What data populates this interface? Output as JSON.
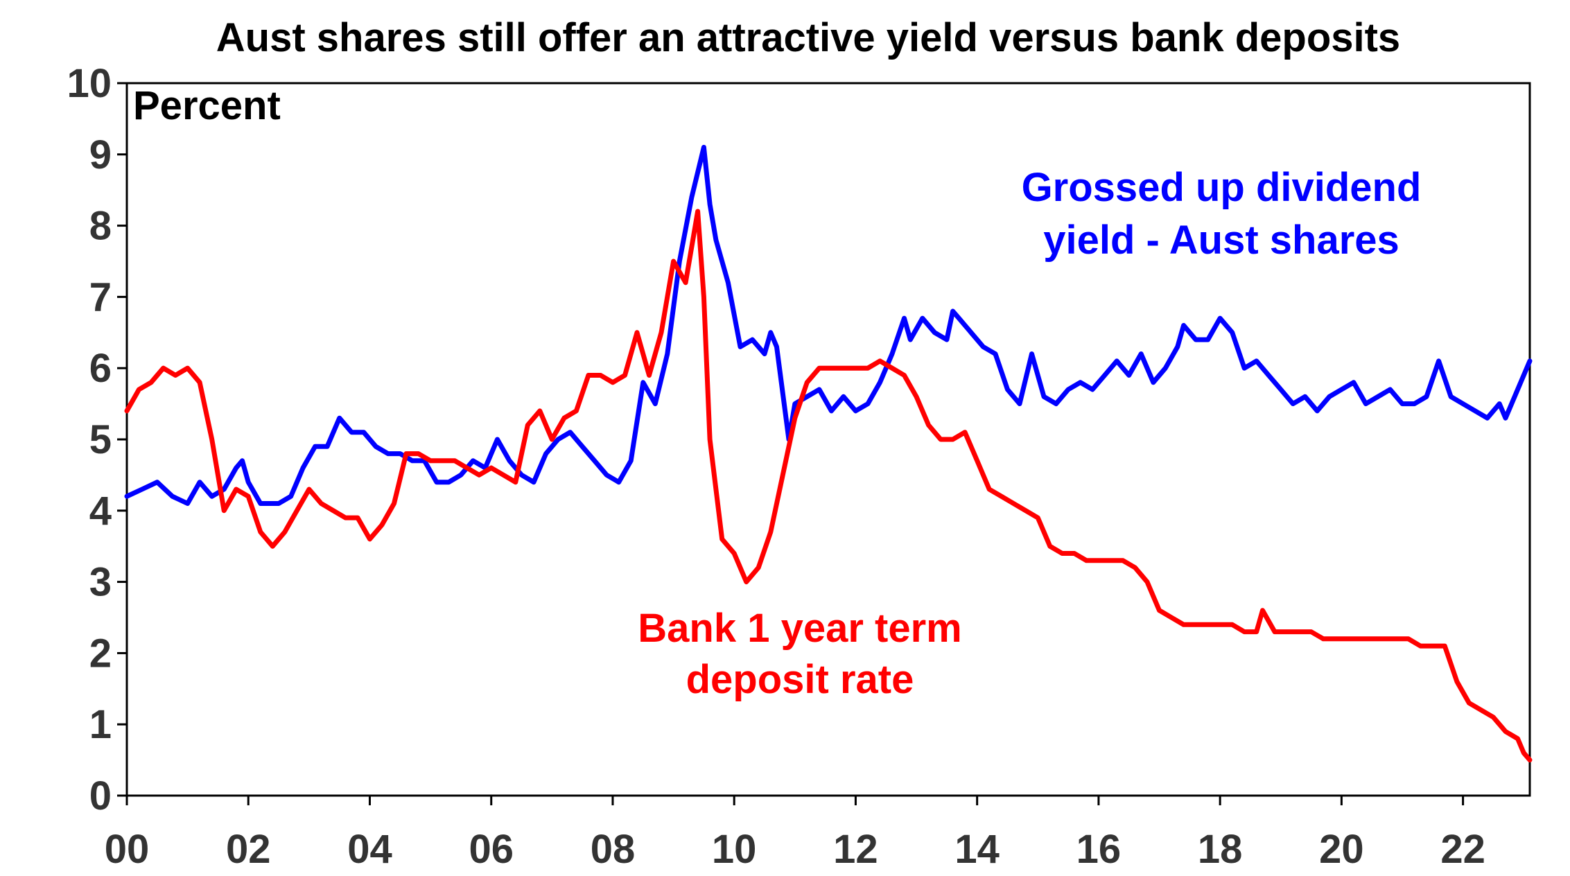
{
  "chart_data": {
    "type": "line",
    "title": "Aust shares still offer an attractive yield versus bank deposits",
    "ylabel": "Percent",
    "xlabel": "",
    "xlim": [
      2000,
      2023.1
    ],
    "ylim": [
      0,
      10
    ],
    "y_ticks": [
      "0",
      "1",
      "2",
      "3",
      "4",
      "5",
      "6",
      "7",
      "8",
      "9",
      "10"
    ],
    "x_ticks": [
      {
        "x": 2000,
        "label": "00"
      },
      {
        "x": 2002,
        "label": "02"
      },
      {
        "x": 2004,
        "label": "04"
      },
      {
        "x": 2006,
        "label": "06"
      },
      {
        "x": 2008,
        "label": "08"
      },
      {
        "x": 2010,
        "label": "10"
      },
      {
        "x": 2012,
        "label": "12"
      },
      {
        "x": 2014,
        "label": "14"
      },
      {
        "x": 2016,
        "label": "16"
      },
      {
        "x": 2018,
        "label": "18"
      },
      {
        "x": 2020,
        "label": "20"
      },
      {
        "x": 2022,
        "label": "22"
      }
    ],
    "grid": false,
    "series": [
      {
        "name": "Grossed up dividend yield - Aust shares",
        "label_lines": [
          "Grossed up dividend",
          "yield - Aust shares"
        ],
        "color": "#0000ff",
        "points": [
          [
            2000.0,
            4.2
          ],
          [
            2000.25,
            4.3
          ],
          [
            2000.5,
            4.4
          ],
          [
            2000.75,
            4.2
          ],
          [
            2001.0,
            4.1
          ],
          [
            2001.2,
            4.4
          ],
          [
            2001.4,
            4.2
          ],
          [
            2001.6,
            4.3
          ],
          [
            2001.8,
            4.6
          ],
          [
            2001.9,
            4.7
          ],
          [
            2002.0,
            4.4
          ],
          [
            2002.2,
            4.1
          ],
          [
            2002.5,
            4.1
          ],
          [
            2002.7,
            4.2
          ],
          [
            2002.9,
            4.6
          ],
          [
            2003.1,
            4.9
          ],
          [
            2003.3,
            4.9
          ],
          [
            2003.5,
            5.3
          ],
          [
            2003.7,
            5.1
          ],
          [
            2003.9,
            5.1
          ],
          [
            2004.1,
            4.9
          ],
          [
            2004.3,
            4.8
          ],
          [
            2004.5,
            4.8
          ],
          [
            2004.7,
            4.7
          ],
          [
            2004.9,
            4.7
          ],
          [
            2005.1,
            4.4
          ],
          [
            2005.3,
            4.4
          ],
          [
            2005.5,
            4.5
          ],
          [
            2005.7,
            4.7
          ],
          [
            2005.9,
            4.6
          ],
          [
            2006.1,
            5.0
          ],
          [
            2006.3,
            4.7
          ],
          [
            2006.5,
            4.5
          ],
          [
            2006.7,
            4.4
          ],
          [
            2006.9,
            4.8
          ],
          [
            2007.1,
            5.0
          ],
          [
            2007.3,
            5.1
          ],
          [
            2007.5,
            4.9
          ],
          [
            2007.7,
            4.7
          ],
          [
            2007.9,
            4.5
          ],
          [
            2008.1,
            4.4
          ],
          [
            2008.3,
            4.7
          ],
          [
            2008.5,
            5.8
          ],
          [
            2008.7,
            5.5
          ],
          [
            2008.9,
            6.2
          ],
          [
            2009.1,
            7.5
          ],
          [
            2009.3,
            8.4
          ],
          [
            2009.5,
            9.1
          ],
          [
            2009.6,
            8.3
          ],
          [
            2009.7,
            7.8
          ],
          [
            2009.9,
            7.2
          ],
          [
            2010.1,
            6.3
          ],
          [
            2010.3,
            6.4
          ],
          [
            2010.5,
            6.2
          ],
          [
            2010.6,
            6.5
          ],
          [
            2010.7,
            6.3
          ],
          [
            2010.9,
            5.0
          ],
          [
            2011.0,
            5.5
          ],
          [
            2011.2,
            5.6
          ],
          [
            2011.4,
            5.7
          ],
          [
            2011.6,
            5.4
          ],
          [
            2011.8,
            5.6
          ],
          [
            2012.0,
            5.4
          ],
          [
            2012.2,
            5.5
          ],
          [
            2012.4,
            5.8
          ],
          [
            2012.6,
            6.2
          ],
          [
            2012.8,
            6.7
          ],
          [
            2012.9,
            6.4
          ],
          [
            2013.1,
            6.7
          ],
          [
            2013.3,
            6.5
          ],
          [
            2013.5,
            6.4
          ],
          [
            2013.6,
            6.8
          ],
          [
            2013.7,
            6.7
          ],
          [
            2013.9,
            6.5
          ],
          [
            2014.1,
            6.3
          ],
          [
            2014.3,
            6.2
          ],
          [
            2014.5,
            5.7
          ],
          [
            2014.7,
            5.5
          ],
          [
            2014.9,
            6.2
          ],
          [
            2015.1,
            5.6
          ],
          [
            2015.3,
            5.5
          ],
          [
            2015.5,
            5.7
          ],
          [
            2015.7,
            5.8
          ],
          [
            2015.9,
            5.7
          ],
          [
            2016.1,
            5.9
          ],
          [
            2016.3,
            6.1
          ],
          [
            2016.5,
            5.9
          ],
          [
            2016.7,
            6.2
          ],
          [
            2016.9,
            5.8
          ],
          [
            2017.1,
            6.0
          ],
          [
            2017.3,
            6.3
          ],
          [
            2017.4,
            6.6
          ],
          [
            2017.6,
            6.4
          ],
          [
            2017.8,
            6.4
          ],
          [
            2018.0,
            6.7
          ],
          [
            2018.2,
            6.5
          ],
          [
            2018.4,
            6.0
          ],
          [
            2018.6,
            6.1
          ],
          [
            2018.8,
            5.9
          ],
          [
            2019.0,
            5.7
          ],
          [
            2019.2,
            5.5
          ],
          [
            2019.4,
            5.6
          ],
          [
            2019.6,
            5.4
          ],
          [
            2019.8,
            5.6
          ],
          [
            2020.0,
            5.7
          ],
          [
            2020.2,
            5.8
          ],
          [
            2020.4,
            5.5
          ],
          [
            2020.6,
            5.6
          ],
          [
            2020.8,
            5.7
          ],
          [
            2021.0,
            5.5
          ],
          [
            2021.2,
            5.5
          ],
          [
            2021.4,
            5.6
          ],
          [
            2021.6,
            6.1
          ],
          [
            2021.8,
            5.6
          ],
          [
            2022.0,
            5.5
          ],
          [
            2022.2,
            5.4
          ],
          [
            2022.4,
            5.3
          ],
          [
            2022.6,
            5.5
          ],
          [
            2022.7,
            5.3
          ],
          [
            2022.9,
            5.7
          ],
          [
            2023.1,
            6.1
          ]
        ]
      },
      {
        "name": "Bank 1 year term deposit rate",
        "label_lines": [
          "Bank 1 year term",
          "deposit rate"
        ],
        "color": "#ff0000",
        "points": [
          [
            2000.0,
            5.4
          ],
          [
            2000.2,
            5.7
          ],
          [
            2000.4,
            5.8
          ],
          [
            2000.6,
            6.0
          ],
          [
            2000.8,
            5.9
          ],
          [
            2001.0,
            6.0
          ],
          [
            2001.2,
            5.8
          ],
          [
            2001.4,
            5.0
          ],
          [
            2001.6,
            4.0
          ],
          [
            2001.8,
            4.3
          ],
          [
            2002.0,
            4.2
          ],
          [
            2002.2,
            3.7
          ],
          [
            2002.4,
            3.5
          ],
          [
            2002.6,
            3.7
          ],
          [
            2002.8,
            4.0
          ],
          [
            2003.0,
            4.3
          ],
          [
            2003.2,
            4.1
          ],
          [
            2003.4,
            4.0
          ],
          [
            2003.6,
            3.9
          ],
          [
            2003.8,
            3.9
          ],
          [
            2004.0,
            3.6
          ],
          [
            2004.2,
            3.8
          ],
          [
            2004.4,
            4.1
          ],
          [
            2004.6,
            4.8
          ],
          [
            2004.8,
            4.8
          ],
          [
            2005.0,
            4.7
          ],
          [
            2005.2,
            4.7
          ],
          [
            2005.4,
            4.7
          ],
          [
            2005.6,
            4.6
          ],
          [
            2005.8,
            4.5
          ],
          [
            2006.0,
            4.6
          ],
          [
            2006.2,
            4.5
          ],
          [
            2006.4,
            4.4
          ],
          [
            2006.6,
            5.2
          ],
          [
            2006.8,
            5.4
          ],
          [
            2007.0,
            5.0
          ],
          [
            2007.2,
            5.3
          ],
          [
            2007.4,
            5.4
          ],
          [
            2007.6,
            5.9
          ],
          [
            2007.8,
            5.9
          ],
          [
            2008.0,
            5.8
          ],
          [
            2008.2,
            5.9
          ],
          [
            2008.4,
            6.5
          ],
          [
            2008.6,
            5.9
          ],
          [
            2008.8,
            6.5
          ],
          [
            2009.0,
            7.5
          ],
          [
            2009.2,
            7.2
          ],
          [
            2009.4,
            8.2
          ],
          [
            2009.5,
            7.0
          ],
          [
            2009.6,
            5.0
          ],
          [
            2009.8,
            3.6
          ],
          [
            2010.0,
            3.4
          ],
          [
            2010.2,
            3.0
          ],
          [
            2010.4,
            3.2
          ],
          [
            2010.6,
            3.7
          ],
          [
            2010.8,
            4.5
          ],
          [
            2011.0,
            5.3
          ],
          [
            2011.2,
            5.8
          ],
          [
            2011.4,
            6.0
          ],
          [
            2011.6,
            6.0
          ],
          [
            2011.8,
            6.0
          ],
          [
            2012.0,
            6.0
          ],
          [
            2012.2,
            6.0
          ],
          [
            2012.4,
            6.1
          ],
          [
            2012.6,
            6.0
          ],
          [
            2012.8,
            5.9
          ],
          [
            2013.0,
            5.6
          ],
          [
            2013.2,
            5.2
          ],
          [
            2013.4,
            5.0
          ],
          [
            2013.6,
            5.0
          ],
          [
            2013.8,
            5.1
          ],
          [
            2014.0,
            4.7
          ],
          [
            2014.2,
            4.3
          ],
          [
            2014.4,
            4.2
          ],
          [
            2014.6,
            4.1
          ],
          [
            2014.8,
            4.0
          ],
          [
            2015.0,
            3.9
          ],
          [
            2015.2,
            3.5
          ],
          [
            2015.4,
            3.4
          ],
          [
            2015.6,
            3.4
          ],
          [
            2015.8,
            3.3
          ],
          [
            2016.0,
            3.3
          ],
          [
            2016.2,
            3.3
          ],
          [
            2016.4,
            3.3
          ],
          [
            2016.6,
            3.2
          ],
          [
            2016.8,
            3.0
          ],
          [
            2017.0,
            2.6
          ],
          [
            2017.2,
            2.5
          ],
          [
            2017.4,
            2.4
          ],
          [
            2017.6,
            2.4
          ],
          [
            2017.8,
            2.4
          ],
          [
            2018.0,
            2.4
          ],
          [
            2018.2,
            2.4
          ],
          [
            2018.4,
            2.3
          ],
          [
            2018.6,
            2.3
          ],
          [
            2018.7,
            2.6
          ],
          [
            2018.9,
            2.3
          ],
          [
            2019.1,
            2.3
          ],
          [
            2019.3,
            2.3
          ],
          [
            2019.5,
            2.3
          ],
          [
            2019.7,
            2.2
          ],
          [
            2019.9,
            2.2
          ],
          [
            2020.1,
            2.2
          ],
          [
            2020.3,
            2.2
          ],
          [
            2020.5,
            2.2
          ],
          [
            2020.7,
            2.2
          ],
          [
            2020.9,
            2.2
          ],
          [
            2021.1,
            2.2
          ],
          [
            2021.3,
            2.1
          ],
          [
            2021.5,
            2.1
          ],
          [
            2021.7,
            2.1
          ],
          [
            2021.9,
            1.6
          ],
          [
            2022.1,
            1.3
          ],
          [
            2022.3,
            1.2
          ],
          [
            2022.5,
            1.1
          ],
          [
            2022.7,
            0.9
          ],
          [
            2022.9,
            0.8
          ],
          [
            2023.0,
            0.6
          ],
          [
            2023.1,
            0.5
          ]
        ]
      }
    ]
  }
}
